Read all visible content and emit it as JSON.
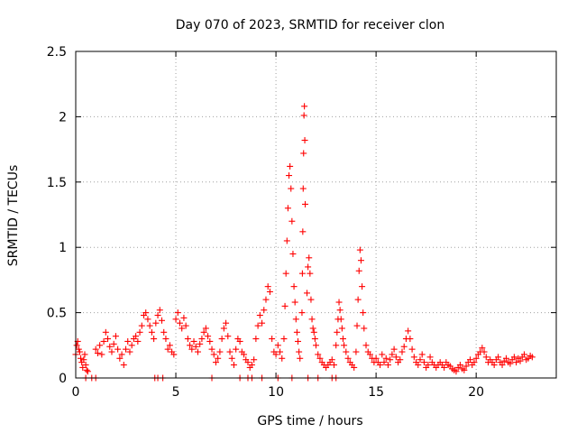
{
  "chart_data": {
    "type": "scatter",
    "title": "Day 070 of 2023, SRMTID for receiver clon",
    "xlabel": "GPS time / hours",
    "ylabel": "SRMTID / TECUs",
    "xlim": [
      0,
      24
    ],
    "ylim": [
      0,
      2.5
    ],
    "xticks": [
      0,
      5,
      10,
      15,
      20
    ],
    "xtick_labels": [
      "0",
      "5",
      "10",
      "15",
      "20"
    ],
    "yticks": [
      0,
      0.5,
      1,
      1.5,
      2,
      2.5
    ],
    "ytick_labels": [
      "0",
      "0.5",
      "1",
      "1.5",
      "2",
      "2.5"
    ],
    "grid": true,
    "marker": "+",
    "color": "#ff0000",
    "series": [
      {
        "name": "SRMTID",
        "x": [
          0.0,
          0.05,
          0.1,
          0.15,
          0.2,
          0.25,
          0.3,
          0.35,
          0.4,
          0.45,
          0.5,
          0.55,
          0.6,
          1.0,
          1.1,
          1.2,
          1.3,
          1.4,
          1.5,
          1.6,
          1.7,
          1.8,
          1.9,
          2.0,
          2.1,
          2.2,
          2.3,
          2.4,
          2.5,
          2.6,
          2.7,
          2.8,
          2.9,
          3.0,
          3.1,
          3.2,
          3.3,
          3.4,
          3.5,
          3.6,
          3.7,
          3.8,
          3.9,
          4.0,
          4.1,
          4.2,
          4.3,
          4.4,
          4.5,
          4.6,
          4.7,
          4.8,
          4.9,
          5.0,
          5.1,
          5.2,
          5.3,
          5.4,
          5.5,
          5.6,
          5.7,
          5.8,
          5.9,
          6.0,
          6.1,
          6.2,
          6.3,
          6.4,
          6.5,
          6.6,
          6.7,
          6.8,
          6.9,
          7.0,
          7.1,
          7.2,
          7.3,
          7.4,
          7.5,
          7.6,
          7.7,
          7.8,
          7.9,
          8.0,
          8.1,
          8.2,
          8.3,
          8.4,
          8.5,
          8.6,
          8.7,
          8.8,
          8.9,
          9.0,
          9.1,
          9.2,
          9.3,
          9.4,
          9.5,
          9.6,
          9.7,
          9.8,
          9.9,
          10.0,
          10.1,
          10.2,
          10.3,
          10.4,
          10.45,
          10.5,
          10.55,
          10.6,
          10.65,
          10.7,
          10.75,
          10.8,
          10.85,
          10.9,
          10.95,
          11.0,
          11.05,
          11.1,
          11.15,
          11.2,
          11.3,
          11.32,
          11.34,
          11.36,
          11.38,
          11.4,
          11.42,
          11.44,
          11.46,
          11.55,
          11.6,
          11.65,
          11.7,
          11.75,
          11.8,
          11.85,
          11.9,
          11.95,
          12.0,
          12.1,
          12.2,
          12.3,
          12.4,
          12.5,
          12.6,
          12.7,
          12.8,
          12.9,
          13.0,
          13.05,
          13.1,
          13.15,
          13.2,
          13.25,
          13.3,
          13.35,
          13.4,
          13.5,
          13.6,
          13.7,
          13.8,
          13.9,
          14.0,
          14.05,
          14.1,
          14.15,
          14.2,
          14.25,
          14.3,
          14.35,
          14.4,
          14.5,
          14.6,
          14.7,
          14.8,
          14.9,
          15.0,
          15.1,
          15.2,
          15.3,
          15.4,
          15.5,
          15.6,
          15.7,
          15.8,
          15.9,
          16.0,
          16.1,
          16.2,
          16.3,
          16.4,
          16.5,
          16.6,
          16.7,
          16.8,
          16.9,
          17.0,
          17.1,
          17.2,
          17.3,
          17.4,
          17.5,
          17.6,
          17.7,
          17.8,
          17.9,
          18.0,
          18.1,
          18.2,
          18.3,
          18.4,
          18.5,
          18.6,
          18.7,
          18.8,
          18.9,
          19.0,
          19.1,
          19.2,
          19.3,
          19.4,
          19.5,
          19.6,
          19.7,
          19.8,
          19.9,
          20.0,
          20.1,
          20.2,
          20.3,
          20.4,
          20.5,
          20.6,
          20.7,
          20.8,
          20.9,
          21.0,
          21.1,
          21.2,
          21.3,
          21.4,
          21.5,
          21.6,
          21.7,
          21.8,
          21.9,
          22.0,
          22.1,
          22.2,
          22.3,
          22.4,
          22.5,
          22.6,
          22.7,
          22.8,
          0.5,
          0.8,
          1.0,
          3.95,
          4.1,
          4.35,
          6.8,
          8.2,
          8.6,
          8.8,
          9.3,
          10.1,
          10.8,
          11.6,
          12.1,
          12.8,
          13.0
        ],
        "y": [
          0.18,
          0.25,
          0.28,
          0.22,
          0.2,
          0.15,
          0.12,
          0.08,
          0.14,
          0.18,
          0.1,
          0.06,
          0.05,
          0.22,
          0.19,
          0.25,
          0.18,
          0.28,
          0.35,
          0.3,
          0.24,
          0.2,
          0.26,
          0.32,
          0.22,
          0.15,
          0.18,
          0.1,
          0.22,
          0.28,
          0.2,
          0.25,
          0.3,
          0.32,
          0.28,
          0.35,
          0.4,
          0.48,
          0.5,
          0.45,
          0.4,
          0.35,
          0.3,
          0.42,
          0.48,
          0.52,
          0.44,
          0.35,
          0.3,
          0.22,
          0.25,
          0.2,
          0.18,
          0.45,
          0.5,
          0.42,
          0.38,
          0.46,
          0.4,
          0.3,
          0.25,
          0.22,
          0.28,
          0.24,
          0.2,
          0.26,
          0.3,
          0.35,
          0.38,
          0.32,
          0.28,
          0.22,
          0.18,
          0.12,
          0.15,
          0.2,
          0.3,
          0.38,
          0.42,
          0.32,
          0.2,
          0.15,
          0.1,
          0.22,
          0.3,
          0.28,
          0.2,
          0.18,
          0.14,
          0.12,
          0.08,
          0.1,
          0.14,
          0.3,
          0.4,
          0.48,
          0.42,
          0.52,
          0.6,
          0.7,
          0.66,
          0.3,
          0.2,
          0.18,
          0.25,
          0.2,
          0.15,
          0.3,
          0.55,
          0.8,
          1.05,
          1.3,
          1.55,
          1.62,
          1.45,
          1.2,
          0.95,
          0.7,
          0.58,
          0.45,
          0.35,
          0.28,
          0.2,
          0.15,
          0.5,
          0.8,
          1.12,
          1.45,
          1.72,
          2.01,
          2.08,
          1.82,
          1.33,
          0.65,
          0.85,
          0.92,
          0.8,
          0.6,
          0.45,
          0.38,
          0.35,
          0.3,
          0.25,
          0.18,
          0.15,
          0.12,
          0.1,
          0.08,
          0.1,
          0.12,
          0.14,
          0.1,
          0.25,
          0.35,
          0.45,
          0.58,
          0.52,
          0.45,
          0.38,
          0.3,
          0.25,
          0.2,
          0.15,
          0.12,
          0.1,
          0.08,
          0.2,
          0.4,
          0.6,
          0.82,
          0.98,
          0.9,
          0.7,
          0.5,
          0.38,
          0.25,
          0.2,
          0.18,
          0.15,
          0.12,
          0.15,
          0.12,
          0.1,
          0.18,
          0.12,
          0.15,
          0.1,
          0.14,
          0.18,
          0.22,
          0.16,
          0.12,
          0.14,
          0.2,
          0.24,
          0.3,
          0.36,
          0.3,
          0.22,
          0.16,
          0.12,
          0.1,
          0.14,
          0.18,
          0.12,
          0.08,
          0.1,
          0.16,
          0.12,
          0.1,
          0.08,
          0.1,
          0.12,
          0.1,
          0.08,
          0.12,
          0.1,
          0.09,
          0.07,
          0.06,
          0.05,
          0.08,
          0.1,
          0.07,
          0.06,
          0.09,
          0.12,
          0.14,
          0.1,
          0.12,
          0.15,
          0.18,
          0.2,
          0.23,
          0.2,
          0.16,
          0.12,
          0.14,
          0.12,
          0.1,
          0.14,
          0.16,
          0.12,
          0.1,
          0.13,
          0.15,
          0.12,
          0.11,
          0.14,
          0.16,
          0.12,
          0.15,
          0.13,
          0.16,
          0.18,
          0.14,
          0.15,
          0.17,
          0.16,
          0.0,
          0.0,
          0.0,
          0.0,
          0.0,
          0.0,
          0.0,
          0.0,
          0.0,
          0.0,
          0.0,
          0.0,
          0.0,
          0.0,
          0.0,
          0.0,
          0.0
        ]
      }
    ]
  }
}
